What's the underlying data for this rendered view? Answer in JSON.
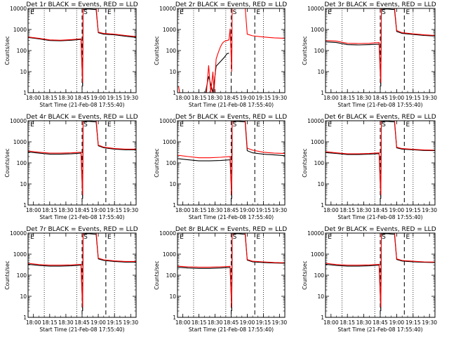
{
  "figure": {
    "xlabel": "Start Time (21-Feb-08 17:55:40)",
    "ylabel": "Counts/sec",
    "x_tick_labels": [
      "18:00",
      "18:15",
      "18:30",
      "18:45",
      "19:00",
      "19:15",
      "19:30"
    ],
    "y_tick_labels": [
      "1",
      "10",
      "100",
      "1000",
      "10000"
    ],
    "marker_labels": [
      "E",
      "S",
      "E"
    ],
    "colors": {
      "events": "#000000",
      "lld": "#ff0000",
      "background": "#ffffff"
    }
  },
  "chart_data": [
    {
      "type": "line",
      "title": "Det 1r BLACK = Events, RED = LLD",
      "xlabel": "Start Time (21-Feb-08 17:55:40)",
      "ylabel": "Counts/sec",
      "y_scale": "log",
      "ylim": [
        1,
        10000
      ],
      "xlim": [
        "17:55",
        "19:35"
      ],
      "dotted_lines": [
        "18:10",
        "18:40",
        "19:15"
      ],
      "dashed_lines": [
        "18:45",
        "19:07"
      ],
      "series": [
        {
          "color": "black",
          "x": [
            "17:55",
            "18:05",
            "18:15",
            "18:25",
            "18:35",
            "18:44",
            "18:45:30",
            "18:46",
            "18:51",
            "18:56",
            "18:58",
            "19:00",
            "19:05",
            "19:15",
            "19:25",
            "19:35"
          ],
          "values": [
            420,
            360,
            300,
            290,
            310,
            340,
            2,
            9000,
            9500,
            9000,
            9000,
            700,
            600,
            560,
            480,
            420
          ]
        },
        {
          "color": "red",
          "x": [
            "17:55",
            "18:05",
            "18:15",
            "18:25",
            "18:35",
            "18:44",
            "18:45:30",
            "18:46",
            "18:51",
            "18:56",
            "18:58",
            "19:00",
            "19:05",
            "19:15",
            "19:25",
            "19:35"
          ],
          "values": [
            440,
            380,
            320,
            310,
            330,
            360,
            3,
            10000,
            12000,
            12000,
            12000,
            750,
            650,
            600,
            520,
            460
          ]
        }
      ]
    },
    {
      "type": "line",
      "title": "Det 2r BLACK = Events, RED = LLD",
      "xlabel": "Start Time (21-Feb-08 17:55:40)",
      "ylabel": "Counts/sec",
      "y_scale": "log",
      "ylim": [
        1,
        10000
      ],
      "xlim": [
        "17:55",
        "19:35"
      ],
      "dotted_lines": [
        "18:10",
        "18:40",
        "19:15"
      ],
      "dashed_lines": [
        "18:45",
        "19:07"
      ],
      "series": [
        {
          "color": "black",
          "x": [
            "18:21",
            "18:24",
            "18:28",
            "18:31",
            "18:35",
            "18:39",
            "18:41",
            "18:43"
          ],
          "values": [
            1,
            6,
            1,
            18,
            30,
            50,
            70,
            75
          ]
        },
        {
          "color": "red",
          "x": [
            "17:56",
            "17:57",
            "18:22",
            "18:24",
            "18:26",
            "18:28",
            "18:29",
            "18:31",
            "18:33",
            "18:35",
            "18:37",
            "18:39",
            "18:41",
            "18:43",
            "18:44",
            "18:45:30",
            "18:46",
            "18:51",
            "18:56",
            "18:58",
            "19:00",
            "19:05",
            "19:15",
            "19:25",
            "19:35"
          ],
          "values": [
            2,
            1,
            1,
            20,
            1,
            10,
            1,
            40,
            80,
            150,
            230,
            280,
            300,
            320,
            1100,
            10,
            10000,
            12000,
            12000,
            12000,
            600,
            500,
            440,
            400,
            380
          ]
        }
      ]
    },
    {
      "type": "line",
      "title": "Det 3r BLACK = Events, RED = LLD",
      "xlabel": "Start Time (21-Feb-08 17:55:40)",
      "ylabel": "Counts/sec",
      "y_scale": "log",
      "ylim": [
        1,
        10000
      ],
      "xlim": [
        "17:55",
        "19:35"
      ],
      "dotted_lines": [
        "18:10",
        "18:40",
        "19:15"
      ],
      "dashed_lines": [
        "18:45",
        "19:07"
      ],
      "series": [
        {
          "color": "black",
          "x": [
            "17:55",
            "18:05",
            "18:15",
            "18:25",
            "18:35",
            "18:44",
            "18:45:30",
            "18:46",
            "18:51",
            "18:56",
            "18:58",
            "19:00",
            "19:05",
            "19:15",
            "19:25",
            "19:35"
          ],
          "values": [
            260,
            240,
            190,
            185,
            190,
            200,
            2,
            9000,
            9500,
            9000,
            9000,
            800,
            650,
            580,
            520,
            490
          ]
        },
        {
          "color": "red",
          "x": [
            "17:55",
            "18:05",
            "18:15",
            "18:25",
            "18:35",
            "18:44",
            "18:45:30",
            "18:46",
            "18:51",
            "18:56",
            "18:58",
            "19:00",
            "19:05",
            "19:15",
            "19:25",
            "19:35"
          ],
          "values": [
            300,
            280,
            220,
            215,
            220,
            240,
            3,
            10000,
            12000,
            12000,
            12000,
            900,
            700,
            620,
            560,
            520
          ]
        }
      ]
    },
    {
      "type": "line",
      "title": "Det 4r BLACK = Events, RED = LLD",
      "xlabel": "Start Time (21-Feb-08 17:55:40)",
      "ylabel": "Counts/sec",
      "y_scale": "log",
      "ylim": [
        1,
        10000
      ],
      "xlim": [
        "17:55",
        "19:35"
      ],
      "dotted_lines": [
        "18:10",
        "18:40",
        "19:15"
      ],
      "dashed_lines": [
        "18:45",
        "19:07"
      ],
      "series": [
        {
          "color": "black",
          "x": [
            "17:55",
            "18:05",
            "18:15",
            "18:25",
            "18:35",
            "18:44",
            "18:45:30",
            "18:46",
            "18:51",
            "18:56",
            "18:58",
            "19:00",
            "19:05",
            "19:15",
            "19:25",
            "19:35"
          ],
          "values": [
            330,
            290,
            260,
            260,
            270,
            290,
            2,
            9000,
            9500,
            9000,
            9000,
            650,
            520,
            450,
            420,
            420
          ]
        },
        {
          "color": "red",
          "x": [
            "17:55",
            "18:05",
            "18:15",
            "18:25",
            "18:35",
            "18:44",
            "18:45:30",
            "18:46",
            "18:51",
            "18:56",
            "18:58",
            "19:00",
            "19:05",
            "19:15",
            "19:25",
            "19:35"
          ],
          "values": [
            370,
            320,
            290,
            290,
            300,
            320,
            3,
            10000,
            12000,
            12000,
            12000,
            700,
            560,
            480,
            450,
            450
          ]
        }
      ]
    },
    {
      "type": "line",
      "title": "Det 5r BLACK = Events, RED = LLD",
      "xlabel": "Start Time (21-Feb-08 17:55:40)",
      "ylabel": "Counts/sec",
      "y_scale": "log",
      "ylim": [
        1,
        10000
      ],
      "xlim": [
        "17:55",
        "19:35"
      ],
      "dotted_lines": [
        "18:10",
        "18:40",
        "19:15"
      ],
      "dashed_lines": [
        "18:45",
        "19:07"
      ],
      "series": [
        {
          "color": "black",
          "x": [
            "17:55",
            "18:05",
            "18:15",
            "18:25",
            "18:35",
            "18:44",
            "18:45:30",
            "18:46",
            "18:51",
            "18:56",
            "18:58",
            "19:00",
            "19:05",
            "19:15",
            "19:25",
            "19:35"
          ],
          "values": [
            160,
            140,
            125,
            125,
            130,
            140,
            2,
            9000,
            9500,
            9000,
            9000,
            380,
            300,
            260,
            240,
            220
          ]
        },
        {
          "color": "red",
          "x": [
            "17:55",
            "18:05",
            "18:15",
            "18:25",
            "18:35",
            "18:44",
            "18:45:30",
            "18:46",
            "18:51",
            "18:56",
            "18:58",
            "19:00",
            "19:05",
            "19:15",
            "19:25",
            "19:35"
          ],
          "values": [
            230,
            200,
            175,
            175,
            185,
            200,
            3,
            10000,
            12000,
            12000,
            12000,
            500,
            400,
            320,
            290,
            280
          ]
        }
      ]
    },
    {
      "type": "line",
      "title": "Det 6r BLACK = Events, RED = LLD",
      "xlabel": "Start Time (21-Feb-08 17:55:40)",
      "ylabel": "Counts/sec",
      "y_scale": "log",
      "ylim": [
        1,
        10000
      ],
      "xlim": [
        "17:55",
        "19:35"
      ],
      "dotted_lines": [
        "18:10",
        "18:40",
        "19:15"
      ],
      "dashed_lines": [
        "18:45",
        "19:07"
      ],
      "series": [
        {
          "color": "black",
          "x": [
            "17:55",
            "18:05",
            "18:15",
            "18:25",
            "18:35",
            "18:44",
            "18:45:30",
            "18:46",
            "18:51",
            "18:56",
            "18:58",
            "19:00",
            "19:05",
            "19:15",
            "19:25",
            "19:35"
          ],
          "values": [
            310,
            280,
            250,
            250,
            260,
            275,
            2,
            9000,
            9500,
            9000,
            9000,
            520,
            450,
            420,
            390,
            380
          ]
        },
        {
          "color": "red",
          "x": [
            "17:55",
            "18:05",
            "18:15",
            "18:25",
            "18:35",
            "18:44",
            "18:45:30",
            "18:46",
            "18:51",
            "18:56",
            "18:58",
            "19:00",
            "19:05",
            "19:15",
            "19:25",
            "19:35"
          ],
          "values": [
            340,
            300,
            270,
            270,
            280,
            300,
            3,
            10000,
            12000,
            12000,
            12000,
            560,
            480,
            440,
            410,
            400
          ]
        }
      ]
    },
    {
      "type": "line",
      "title": "Det 7r BLACK = Events, RED = LLD",
      "xlabel": "Start Time (21-Feb-08 17:55:40)",
      "ylabel": "Counts/sec",
      "y_scale": "log",
      "ylim": [
        1,
        10000
      ],
      "xlim": [
        "17:55",
        "19:35"
      ],
      "dotted_lines": [
        "18:10",
        "18:40",
        "19:15"
      ],
      "dashed_lines": [
        "18:45",
        "19:07"
      ],
      "series": [
        {
          "color": "black",
          "x": [
            "17:55",
            "18:05",
            "18:15",
            "18:25",
            "18:35",
            "18:44",
            "18:45:30",
            "18:46",
            "18:51",
            "18:56",
            "18:58",
            "19:00",
            "19:05",
            "19:15",
            "19:25",
            "19:35"
          ],
          "values": [
            330,
            290,
            270,
            270,
            280,
            300,
            2,
            9000,
            9500,
            9000,
            9000,
            600,
            500,
            450,
            420,
            420
          ]
        },
        {
          "color": "red",
          "x": [
            "17:55",
            "18:05",
            "18:15",
            "18:25",
            "18:35",
            "18:44",
            "18:45:30",
            "18:46",
            "18:51",
            "18:56",
            "18:58",
            "19:00",
            "19:05",
            "19:15",
            "19:25",
            "19:35"
          ],
          "values": [
            370,
            320,
            300,
            300,
            310,
            330,
            3,
            10000,
            12000,
            12000,
            12000,
            650,
            540,
            480,
            450,
            450
          ]
        }
      ]
    },
    {
      "type": "line",
      "title": "Det 8r BLACK = Events, RED = LLD",
      "xlabel": "Start Time (21-Feb-08 17:55:40)",
      "ylabel": "Counts/sec",
      "y_scale": "log",
      "ylim": [
        1,
        10000
      ],
      "xlim": [
        "17:55",
        "19:35"
      ],
      "dotted_lines": [
        "18:10",
        "18:40",
        "19:15"
      ],
      "dashed_lines": [
        "18:45",
        "19:07"
      ],
      "series": [
        {
          "color": "black",
          "x": [
            "17:55",
            "18:05",
            "18:15",
            "18:25",
            "18:35",
            "18:44",
            "18:45:30",
            "18:46",
            "18:51",
            "18:56",
            "18:58",
            "19:00",
            "19:05",
            "19:15",
            "19:25",
            "19:35"
          ],
          "values": [
            240,
            220,
            210,
            210,
            220,
            235,
            2,
            9000,
            9500,
            9000,
            9000,
            520,
            430,
            400,
            380,
            370
          ]
        },
        {
          "color": "red",
          "x": [
            "17:55",
            "18:05",
            "18:15",
            "18:25",
            "18:35",
            "18:44",
            "18:45:30",
            "18:46",
            "18:51",
            "18:56",
            "18:58",
            "19:00",
            "19:05",
            "19:15",
            "19:25",
            "19:35"
          ],
          "values": [
            270,
            250,
            240,
            240,
            250,
            265,
            3,
            10000,
            12000,
            12000,
            12000,
            560,
            460,
            430,
            400,
            390
          ]
        }
      ]
    },
    {
      "type": "line",
      "title": "Det 9r BLACK = Events, RED = LLD",
      "xlabel": "Start Time (21-Feb-08 17:55:40)",
      "ylabel": "Counts/sec",
      "y_scale": "log",
      "ylim": [
        1,
        10000
      ],
      "xlim": [
        "17:55",
        "19:35"
      ],
      "dotted_lines": [
        "18:10",
        "18:40",
        "19:15"
      ],
      "dashed_lines": [
        "18:45",
        "19:07"
      ],
      "series": [
        {
          "color": "black",
          "x": [
            "17:55",
            "18:05",
            "18:15",
            "18:25",
            "18:35",
            "18:44",
            "18:45:30",
            "18:46",
            "18:51",
            "18:56",
            "18:58",
            "19:00",
            "19:05",
            "19:15",
            "19:25",
            "19:35"
          ],
          "values": [
            330,
            290,
            270,
            270,
            280,
            300,
            2,
            9000,
            9500,
            9000,
            9000,
            560,
            470,
            430,
            410,
            400
          ]
        },
        {
          "color": "red",
          "x": [
            "17:55",
            "18:05",
            "18:15",
            "18:25",
            "18:35",
            "18:44",
            "18:45:30",
            "18:46",
            "18:51",
            "18:56",
            "18:58",
            "19:00",
            "19:05",
            "19:15",
            "19:25",
            "19:35"
          ],
          "values": [
            370,
            320,
            300,
            300,
            310,
            330,
            3,
            10000,
            12000,
            12000,
            12000,
            600,
            500,
            460,
            430,
            420
          ]
        }
      ]
    }
  ]
}
